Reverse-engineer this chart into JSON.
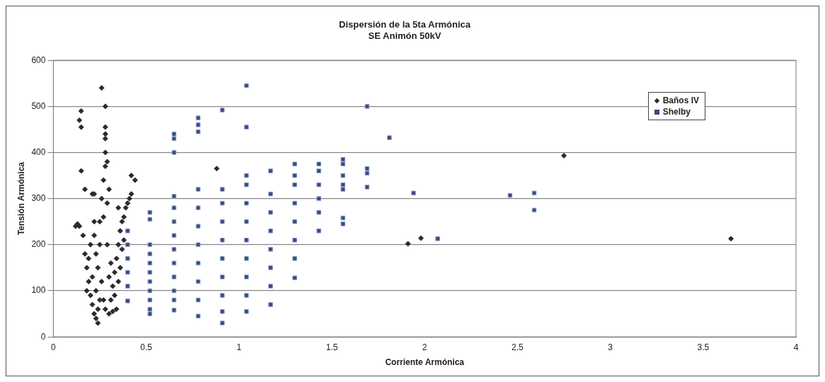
{
  "chart_data": {
    "type": "scatter",
    "title": "Dispersión de la 5ta Armónica",
    "subtitle": "SE Animón 50kV",
    "xlabel": "Corriente Armónica",
    "ylabel": "Tensión Armónica",
    "xlim": [
      0,
      4
    ],
    "xticks": [
      0,
      0.5,
      1,
      1.5,
      2,
      2.5,
      3,
      3.5,
      4
    ],
    "ylim": [
      0,
      600
    ],
    "yticks": [
      0,
      100,
      200,
      300,
      400,
      500,
      600
    ],
    "grid": "y",
    "legend": "top right",
    "series": [
      {
        "name": "Baños IV",
        "color": "#2b2b2b",
        "marker": "diamond",
        "x": [
          0.14,
          0.16,
          0.17,
          0.18,
          0.19,
          0.2,
          0.21,
          0.22,
          0.23,
          0.24,
          0.2,
          0.22,
          0.18,
          0.19,
          0.21,
          0.23,
          0.24,
          0.25,
          0.25,
          0.26,
          0.27,
          0.28,
          0.29,
          0.26,
          0.27,
          0.28,
          0.29,
          0.27,
          0.25,
          0.23,
          0.22,
          0.3,
          0.29,
          0.3,
          0.31,
          0.32,
          0.33,
          0.34,
          0.35,
          0.36,
          0.37,
          0.38,
          0.39,
          0.4,
          0.41,
          0.42,
          0.3,
          0.31,
          0.33,
          0.35,
          0.36,
          0.37,
          0.38,
          0.34,
          0.32,
          0.14,
          0.15,
          0.15,
          0.15,
          0.26,
          0.28,
          0.28,
          0.28,
          0.28,
          0.28,
          0.17,
          0.21,
          0.22,
          0.42,
          0.44,
          0.35,
          0.88,
          1.91,
          1.98,
          2.75,
          3.65,
          0.24,
          0.12,
          0.13
        ],
        "values": [
          240,
          220,
          180,
          150,
          120,
          90,
          70,
          50,
          40,
          60,
          200,
          220,
          100,
          170,
          130,
          100,
          150,
          200,
          250,
          300,
          340,
          370,
          380,
          120,
          80,
          60,
          200,
          260,
          80,
          180,
          250,
          320,
          290,
          50,
          80,
          110,
          140,
          170,
          200,
          230,
          250,
          260,
          280,
          290,
          300,
          310,
          130,
          160,
          90,
          120,
          150,
          190,
          210,
          60,
          55,
          470,
          455,
          490,
          360,
          540,
          500,
          455,
          440,
          430,
          400,
          320,
          310,
          310,
          350,
          340,
          280,
          365,
          202,
          214,
          393,
          213,
          30,
          240,
          245
        ]
      },
      {
        "name": "Shelby",
        "color": "#3b4a78",
        "marker": "square",
        "x": [
          0.4,
          0.4,
          0.4,
          0.4,
          0.4,
          0.4,
          0.52,
          0.52,
          0.52,
          0.52,
          0.52,
          0.52,
          0.52,
          0.52,
          0.52,
          0.52,
          0.52,
          0.65,
          0.65,
          0.65,
          0.65,
          0.65,
          0.65,
          0.65,
          0.65,
          0.65,
          0.65,
          0.65,
          0.65,
          0.65,
          0.78,
          0.78,
          0.78,
          0.78,
          0.78,
          0.78,
          0.78,
          0.78,
          0.78,
          0.78,
          0.78,
          0.91,
          0.91,
          0.91,
          0.91,
          0.91,
          0.91,
          0.91,
          0.91,
          0.91,
          0.91,
          1.04,
          1.04,
          1.04,
          1.04,
          1.04,
          1.04,
          1.04,
          1.04,
          1.04,
          1.04,
          1.04,
          1.17,
          1.17,
          1.17,
          1.17,
          1.17,
          1.17,
          1.17,
          1.17,
          1.3,
          1.3,
          1.3,
          1.3,
          1.3,
          1.3,
          1.3,
          1.3,
          1.43,
          1.43,
          1.43,
          1.43,
          1.43,
          1.43,
          1.56,
          1.56,
          1.56,
          1.56,
          1.56,
          1.56,
          1.56,
          1.69,
          1.69,
          1.69,
          1.69,
          1.81,
          1.94,
          2.07,
          2.46,
          2.59,
          2.59
        ],
        "values": [
          78,
          110,
          140,
          170,
          200,
          230,
          50,
          60,
          80,
          100,
          120,
          140,
          160,
          180,
          200,
          255,
          270,
          58,
          80,
          100,
          130,
          160,
          190,
          220,
          250,
          280,
          305,
          400,
          430,
          440,
          45,
          80,
          120,
          160,
          200,
          240,
          280,
          320,
          445,
          460,
          475,
          30,
          55,
          90,
          130,
          170,
          210,
          250,
          290,
          320,
          492,
          55,
          90,
          130,
          170,
          210,
          250,
          290,
          330,
          350,
          455,
          545,
          70,
          110,
          150,
          190,
          230,
          270,
          310,
          360,
          128,
          170,
          210,
          250,
          290,
          330,
          350,
          375,
          230,
          270,
          300,
          330,
          360,
          375,
          245,
          258,
          320,
          330,
          350,
          375,
          385,
          325,
          355,
          365,
          500,
          432,
          312,
          213,
          307,
          312,
          275
        ]
      }
    ]
  }
}
